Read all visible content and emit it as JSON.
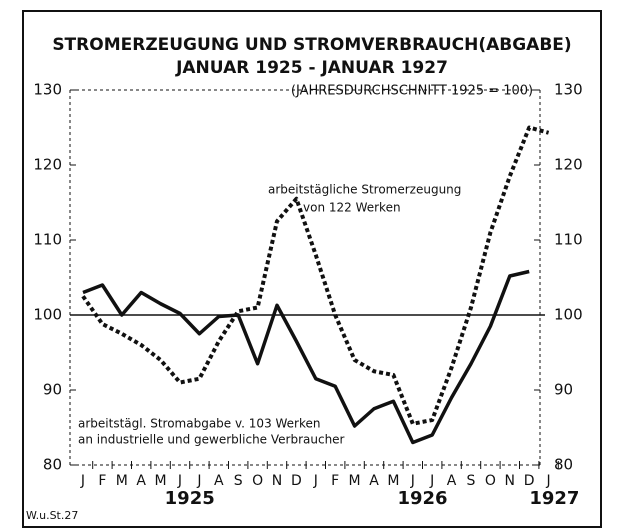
{
  "chart_data": {
    "type": "line",
    "title": "STROMERZEUGUNG UND STROMVERBRAUCH(ABGABE)",
    "title2": "JANUAR 1925 - JANUAR 1927",
    "subtitle": "(JAHRESDURCHSCHNITT 1925 = 100)",
    "categories": [
      "J",
      "F",
      "M",
      "A",
      "M",
      "J",
      "J",
      "A",
      "S",
      "O",
      "N",
      "D",
      "J",
      "F",
      "M",
      "A",
      "M",
      "J",
      "J",
      "A",
      "S",
      "O",
      "N",
      "D",
      "J"
    ],
    "years": [
      "1925",
      "1926",
      "1927"
    ],
    "series": [
      {
        "name": "arbeitstägliche Stromerzeugung von 122 Werken",
        "color": "#111",
        "style": "dotted",
        "values": [
          102.5,
          98.8,
          97.5,
          96,
          94,
          91,
          91.5,
          96.5,
          100.5,
          101,
          112.5,
          115.5,
          108,
          100,
          94,
          92.5,
          92,
          85.5,
          86,
          93,
          101,
          111,
          118.5,
          125,
          124.3
        ]
      },
      {
        "name": "arbeitstägl. Stromabgabe v. 103 Werken an industrielle und gewerbliche Verbraucher",
        "color": "#111",
        "style": "solid",
        "values": [
          103,
          104,
          100,
          103,
          101.5,
          100.2,
          97.5,
          99.8,
          100,
          93.5,
          101.3,
          96.5,
          91.5,
          90.5,
          85.2,
          87.5,
          88.5,
          83,
          84,
          89,
          93.5,
          98.5,
          105.2,
          105.8,
          null
        ]
      }
    ],
    "annotations": [
      "arbeitstägliche Stromerzeugung",
      "von 122 Werken",
      "arbeitstägl. Stromabgabe v. 103 Werken",
      "an industrielle und gewerbliche Verbraucher"
    ],
    "source": "W.u.St.27",
    "ylim": [
      80,
      130
    ],
    "yticks": [
      80,
      90,
      100,
      110,
      120,
      130
    ],
    "y2lim": [
      80,
      130
    ],
    "y2ticks": [
      80,
      90,
      100,
      110,
      120,
      130
    ],
    "reference_line": 100
  }
}
